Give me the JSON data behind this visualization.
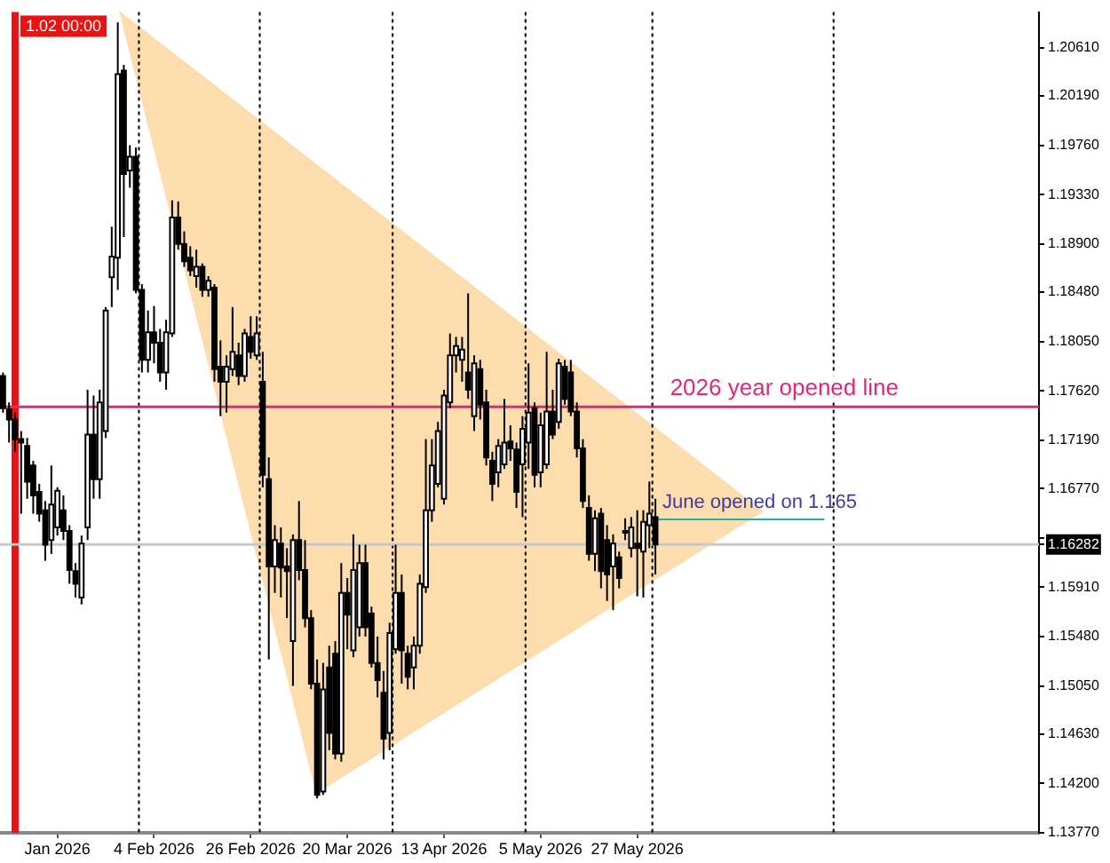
{
  "chart_data": {
    "type": "candlestick",
    "categories": [
      null,
      null,
      null,
      null,
      null,
      null,
      null,
      null,
      null,
      "Jan 2026",
      null,
      null,
      null,
      null,
      null,
      null,
      null,
      null,
      null,
      null,
      null,
      null,
      null,
      null,
      null,
      "4 Feb 2026",
      null,
      null,
      null,
      null,
      null,
      null,
      null,
      null,
      null,
      null,
      null,
      null,
      null,
      null,
      null,
      "26 Feb 2026",
      null,
      null,
      null,
      null,
      null,
      null,
      null,
      null,
      null,
      null,
      null,
      null,
      null,
      null,
      null,
      "20 Mar 2026",
      null,
      null,
      null,
      null,
      null,
      null,
      null,
      null,
      null,
      null,
      null,
      null,
      null,
      null,
      null,
      "13 Apr 2026",
      null,
      null,
      null,
      null,
      null,
      null,
      null,
      null,
      null,
      null,
      null,
      null,
      null,
      null,
      null,
      "5 May 2026",
      null,
      null,
      null,
      null,
      null,
      null,
      null,
      null,
      null,
      null,
      null,
      null,
      null,
      null,
      null,
      "27 May 2026",
      null,
      null,
      null,
      null,
      null,
      null,
      null,
      null,
      null,
      null,
      null,
      null,
      null,
      null,
      null,
      null,
      null,
      null,
      null,
      null,
      null,
      null,
      null,
      null,
      null,
      null,
      null,
      null,
      null,
      null,
      null,
      null,
      null,
      null,
      null,
      null,
      null,
      null,
      null,
      null,
      null,
      null,
      null,
      null,
      null,
      null,
      null,
      null,
      null,
      null,
      null,
      null,
      null,
      null,
      null,
      null,
      null,
      null,
      null,
      null,
      null,
      null,
      null,
      null,
      null,
      null
    ],
    "ohlc": [
      [
        1.1775,
        1.1778,
        1.1743,
        1.1747
      ],
      [
        1.1746,
        1.1752,
        1.1717,
        1.1737
      ],
      [
        1.1737,
        1.1743,
        1.1709,
        1.172
      ],
      [
        1.172,
        1.1727,
        1.1655,
        1.1717
      ],
      [
        1.1714,
        1.1721,
        1.1668,
        1.1683
      ],
      [
        1.1697,
        1.1701,
        1.1655,
        1.1671
      ],
      [
        1.1674,
        1.1681,
        1.1648,
        1.1655
      ],
      [
        1.1658,
        1.1666,
        1.1614,
        1.1628
      ],
      [
        1.1632,
        1.1697,
        1.162,
        1.1663
      ],
      [
        1.1643,
        1.1678,
        1.1636,
        1.1675
      ],
      [
        1.1658,
        1.1671,
        1.1632,
        1.164
      ],
      [
        1.164,
        1.1645,
        1.1594,
        1.1606
      ],
      [
        1.1605,
        1.1612,
        1.1582,
        1.1594
      ],
      [
        1.1582,
        1.1636,
        1.1576,
        1.1629
      ],
      [
        1.1643,
        1.1763,
        1.1632,
        1.1724
      ],
      [
        1.1724,
        1.1758,
        1.1668,
        1.1685
      ],
      [
        1.1685,
        1.1763,
        1.1668,
        1.1752
      ],
      [
        1.1727,
        1.1835,
        1.1721,
        1.1832
      ],
      [
        1.1861,
        1.1905,
        1.1835,
        1.1879
      ],
      [
        1.1878,
        1.2083,
        1.185,
        1.2038
      ],
      [
        1.2041,
        1.2046,
        1.1896,
        1.1951
      ],
      [
        1.1954,
        1.1976,
        1.1939,
        1.1966
      ],
      [
        1.1966,
        1.1974,
        1.1847,
        1.185
      ],
      [
        1.185,
        1.1855,
        1.1778,
        1.1789
      ],
      [
        1.1789,
        1.1832,
        1.1778,
        1.1813
      ],
      [
        1.1813,
        1.1836,
        1.1786,
        1.1804
      ],
      [
        1.1804,
        1.1816,
        1.177,
        1.1778
      ],
      [
        1.1778,
        1.1824,
        1.1763,
        1.1813
      ],
      [
        1.1812,
        1.1928,
        1.1809,
        1.1913
      ],
      [
        1.1913,
        1.1927,
        1.1885,
        1.189
      ],
      [
        1.189,
        1.1901,
        1.187,
        1.1875
      ],
      [
        1.1878,
        1.1888,
        1.1862,
        1.1867
      ],
      [
        1.1862,
        1.1885,
        1.1852,
        1.187
      ],
      [
        1.187,
        1.1873,
        1.1844,
        1.185
      ],
      [
        1.185,
        1.1862,
        1.1844,
        1.1858
      ],
      [
        1.1852,
        1.1855,
        1.177,
        1.1781
      ],
      [
        1.1783,
        1.1806,
        1.174,
        1.177
      ],
      [
        1.177,
        1.1793,
        1.1743,
        1.1783
      ],
      [
        1.1781,
        1.1835,
        1.1775,
        1.1796
      ],
      [
        1.1793,
        1.1804,
        1.1767,
        1.1775
      ],
      [
        1.1775,
        1.1816,
        1.177,
        1.1812
      ],
      [
        1.1809,
        1.1827,
        1.179,
        1.1796
      ],
      [
        1.1793,
        1.1827,
        1.1789,
        1.1812
      ],
      [
        1.177,
        1.1796,
        1.1678,
        1.1689
      ],
      [
        1.1685,
        1.1704,
        1.1528,
        1.1609
      ],
      [
        1.1609,
        1.1645,
        1.1586,
        1.1632
      ],
      [
        1.1629,
        1.1643,
        1.1582,
        1.1608
      ],
      [
        1.1609,
        1.1625,
        1.1564,
        1.1605
      ],
      [
        1.1544,
        1.1637,
        1.1505,
        1.1632
      ],
      [
        1.1632,
        1.1666,
        1.1597,
        1.1606
      ],
      [
        1.1606,
        1.1632,
        1.1556,
        1.1564
      ],
      [
        1.1564,
        1.1571,
        1.1502,
        1.1507
      ],
      [
        1.1507,
        1.1528,
        1.1407,
        1.141
      ],
      [
        1.1413,
        1.1525,
        1.141,
        1.1502
      ],
      [
        1.1521,
        1.154,
        1.1449,
        1.1464
      ],
      [
        1.1533,
        1.1544,
        1.1441,
        1.1446
      ],
      [
        1.1446,
        1.1612,
        1.1439,
        1.1586
      ],
      [
        1.1586,
        1.1599,
        1.1537,
        1.1567
      ],
      [
        1.1536,
        1.1637,
        1.153,
        1.1606
      ],
      [
        1.1556,
        1.1628,
        1.1548,
        1.1612
      ],
      [
        1.1612,
        1.1628,
        1.1548,
        1.1556
      ],
      [
        1.1568,
        1.1574,
        1.1521,
        1.1525
      ],
      [
        1.1525,
        1.1548,
        1.1495,
        1.151
      ],
      [
        1.1499,
        1.1518,
        1.1441,
        1.1459
      ],
      [
        1.1464,
        1.156,
        1.1449,
        1.1551
      ],
      [
        1.1537,
        1.1628,
        1.1533,
        1.1586
      ],
      [
        1.1586,
        1.1602,
        1.1507,
        1.1536
      ],
      [
        1.1533,
        1.154,
        1.1502,
        1.1513
      ],
      [
        1.1521,
        1.1548,
        1.1502,
        1.154
      ],
      [
        1.154,
        1.1602,
        1.1533,
        1.1594
      ],
      [
        1.1591,
        1.172,
        1.1586,
        1.1658
      ],
      [
        1.1658,
        1.172,
        1.1648,
        1.1697
      ],
      [
        1.1681,
        1.1735,
        1.1678,
        1.1727
      ],
      [
        1.1668,
        1.1763,
        1.1663,
        1.1758
      ],
      [
        1.1752,
        1.1812,
        1.1747,
        1.1793
      ],
      [
        1.1793,
        1.1809,
        1.1778,
        1.1801
      ],
      [
        1.1789,
        1.1809,
        1.177,
        1.1798
      ],
      [
        1.1778,
        1.1847,
        1.1755,
        1.1763
      ],
      [
        1.174,
        1.1793,
        1.1727,
        1.1786
      ],
      [
        1.1781,
        1.1789,
        1.1737,
        1.175
      ],
      [
        1.1752,
        1.1763,
        1.1697,
        1.1704
      ],
      [
        1.1701,
        1.1709,
        1.1666,
        1.1681
      ],
      [
        1.1691,
        1.172,
        1.1678,
        1.1714
      ],
      [
        1.1698,
        1.1755,
        1.1694,
        1.1717
      ],
      [
        1.1718,
        1.1732,
        1.1701,
        1.1712
      ],
      [
        1.1711,
        1.1717,
        1.166,
        1.1674
      ],
      [
        1.1698,
        1.174,
        1.1652,
        1.1729
      ],
      [
        1.1717,
        1.1786,
        1.1694,
        1.1743
      ],
      [
        1.1747,
        1.1752,
        1.1678,
        1.1689
      ],
      [
        1.1691,
        1.1743,
        1.1678,
        1.1732
      ],
      [
        1.1698,
        1.1796,
        1.1694,
        1.1744
      ],
      [
        1.1744,
        1.1763,
        1.172,
        1.1724
      ],
      [
        1.1735,
        1.179,
        1.1729,
        1.1786
      ],
      [
        1.1783,
        1.1789,
        1.175,
        1.1755
      ],
      [
        1.1778,
        1.1789,
        1.174,
        1.1744
      ],
      [
        1.1744,
        1.1752,
        1.1704,
        1.1712
      ],
      [
        1.1712,
        1.172,
        1.166,
        1.1666
      ],
      [
        1.166,
        1.1671,
        1.1614,
        1.162
      ],
      [
        1.162,
        1.1658,
        1.1605,
        1.1651
      ],
      [
        1.1655,
        1.166,
        1.159,
        1.1605
      ],
      [
        1.1632,
        1.1645,
        1.1579,
        1.1602
      ],
      [
        1.1609,
        1.1637,
        1.1571,
        1.1629
      ],
      [
        1.1617,
        1.1622,
        1.159,
        1.1599
      ],
      [
        1.164,
        1.1651,
        1.1632,
        1.1639
      ],
      [
        1.1625,
        1.1652,
        1.1617,
        1.1643
      ],
      [
        1.1629,
        1.1658,
        1.1583,
        1.1625
      ],
      [
        1.1622,
        1.1658,
        1.1582,
        1.1648
      ],
      [
        1.1645,
        1.1683,
        1.1625,
        1.1655
      ],
      [
        1.1652,
        1.1668,
        1.1602,
        1.16282
      ],
      null,
      null,
      null,
      null,
      null,
      null,
      null,
      null,
      null,
      null,
      null,
      null,
      null,
      null,
      null,
      null,
      null,
      null,
      null,
      null,
      null,
      null,
      null,
      null,
      null,
      null,
      null,
      null,
      null,
      null,
      null,
      null,
      null,
      null,
      null,
      null,
      null,
      null,
      null,
      null,
      null,
      null,
      null,
      null,
      null,
      null,
      null,
      null,
      null,
      null,
      null,
      null,
      null,
      null,
      null,
      null,
      null,
      null,
      null,
      null,
      null,
      null,
      null
    ],
    "series": [
      {
        "type": "line",
        "name": "June opened on 1.165",
        "color": "#20b2aa",
        "values": [
          null,
          null,
          null,
          null,
          null,
          null,
          null,
          null,
          null,
          null,
          null,
          null,
          null,
          null,
          null,
          null,
          null,
          null,
          null,
          null,
          null,
          null,
          null,
          null,
          null,
          null,
          null,
          null,
          null,
          null,
          null,
          null,
          null,
          null,
          null,
          null,
          null,
          null,
          null,
          null,
          null,
          null,
          null,
          null,
          null,
          null,
          null,
          null,
          null,
          null,
          null,
          null,
          null,
          null,
          null,
          null,
          null,
          null,
          null,
          null,
          null,
          null,
          null,
          null,
          null,
          null,
          null,
          null,
          null,
          null,
          null,
          null,
          null,
          null,
          null,
          null,
          null,
          null,
          null,
          null,
          null,
          null,
          null,
          null,
          null,
          null,
          null,
          null,
          null,
          null,
          null,
          null,
          null,
          null,
          null,
          null,
          null,
          null,
          null,
          null,
          null,
          null,
          null,
          null,
          null,
          null,
          null,
          null,
          1.165,
          1.165,
          1.165,
          1.165,
          1.165,
          1.165,
          1.165,
          1.165,
          1.165,
          1.165,
          1.165,
          1.165,
          1.165,
          1.165,
          1.165,
          1.165,
          1.165,
          1.165,
          1.165,
          1.165,
          1.165,
          1.165,
          1.165,
          1.165,
          1.165,
          1.165,
          1.165,
          1.165,
          1.165,
          null,
          null,
          null,
          null,
          null,
          null,
          null,
          null,
          null,
          null,
          null,
          null,
          null,
          null,
          null,
          null,
          null,
          null,
          null,
          null,
          null,
          null,
          null,
          null,
          null,
          null,
          null,
          null,
          null,
          null,
          null,
          null,
          null,
          null,
          null
        ]
      }
    ],
    "ylim": [
      1.1377,
      1.2092
    ],
    "yticks": [
      {
        "value": 1.2061,
        "label": "1.20610"
      },
      {
        "value": 1.2019,
        "label": "1.20190"
      },
      {
        "value": 1.1976,
        "label": "1.19760"
      },
      {
        "value": 1.1933,
        "label": "1.19330"
      },
      {
        "value": 1.189,
        "label": "1.18900"
      },
      {
        "value": 1.1848,
        "label": "1.18480"
      },
      {
        "value": 1.1805,
        "label": "1.18050"
      },
      {
        "value": 1.1762,
        "label": "1.17620"
      },
      {
        "value": 1.1719,
        "label": "1.17190"
      },
      {
        "value": 1.1677,
        "label": "1.16770"
      },
      {
        "value": 1.1634,
        "label": null
      },
      {
        "value": 1.16282,
        "label": "1.16282"
      },
      {
        "value": 1.1591,
        "label": "1.15910"
      },
      {
        "value": 1.1548,
        "label": "1.15480"
      },
      {
        "value": 1.1505,
        "label": "1.15050"
      },
      {
        "value": 1.1463,
        "label": "1.14630"
      },
      {
        "value": 1.142,
        "label": "1.14200"
      },
      {
        "value": 1.1377,
        "label": "1.13770"
      }
    ],
    "annotations": [
      "1.02 00:00"
    ],
    "ref_lines": [
      {
        "axis": "y",
        "value": 1.1748,
        "label": "2026 year opened line",
        "color": "#e0287a",
        "line_style": "solid"
      },
      {
        "axis": "y",
        "value": 1.16282,
        "color": "#c8c8c8",
        "line_style": "solid"
      }
    ]
  }
}
